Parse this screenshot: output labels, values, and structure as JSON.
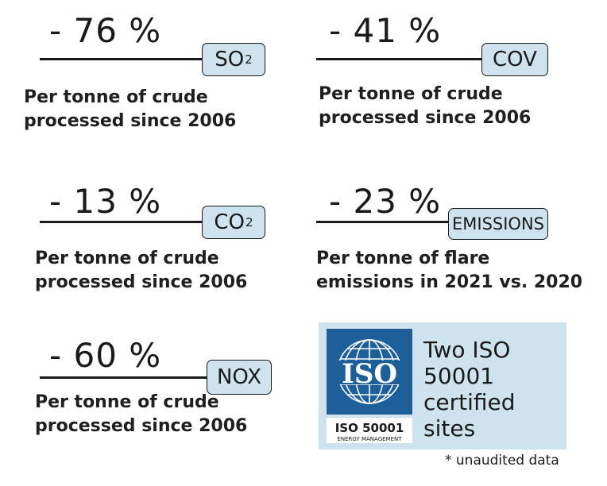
{
  "stats": [
    {
      "value": "- 76 %",
      "tag_main": "SO",
      "tag_sub": "2",
      "desc_line1": "Per tonne of crude",
      "desc_line2": "processed since 2006"
    },
    {
      "value": "- 41 %",
      "tag_main": "COV",
      "tag_sub": "",
      "desc_line1": "Per tonne of crude",
      "desc_line2": "processed since 2006"
    },
    {
      "value": "- 13 %",
      "tag_main": "CO",
      "tag_sub": "2",
      "desc_line1": "Per tonne of crude",
      "desc_line2": "processed since 2006"
    },
    {
      "value": "- 23 %",
      "tag_main": "EMISSIONS",
      "tag_sub": "",
      "desc_line1": "Per tonne of flare",
      "desc_line2": "emissions in 2021 vs. 2020"
    },
    {
      "value": "- 60 %",
      "tag_main": "NOX",
      "tag_sub": "",
      "desc_line1": "Per tonne of crude",
      "desc_line2": "processed since 2006"
    }
  ],
  "iso": {
    "logo_text": "ISO",
    "standard": "ISO 50001",
    "standard_sub": "ENERGY MANAGEMENT",
    "line1": "Two ISO",
    "line2": "50001",
    "line3": "certified",
    "line4": "sites"
  },
  "footnote": "* unaudited data",
  "colors": {
    "tag_bg": "#cfe3ee",
    "iso_blue": "#1c5f99",
    "text": "#1a1a1a"
  }
}
